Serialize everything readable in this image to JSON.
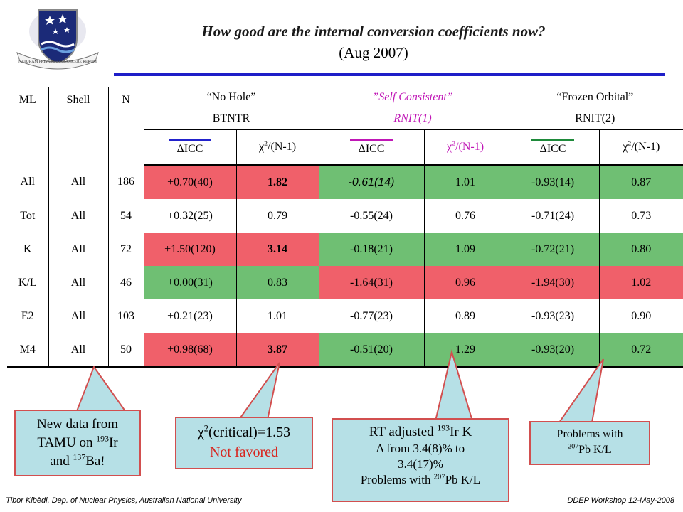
{
  "header": {
    "title": "How good are the internal conversion coefficients now?",
    "subtitle": "(Aug 2007)",
    "crest_motto": "NATURAM PRIMUM COGNOSCERE RERUM"
  },
  "table": {
    "col_ml": "ML",
    "col_shell": "Shell",
    "col_n": "N",
    "groups": [
      {
        "line1": "“No Hole”",
        "line2": "BTNTR",
        "color": "#2222cc"
      },
      {
        "line1": "”Self Consistent”",
        "line2": "RNIT(1)",
        "color": "#c017b6"
      },
      {
        "line1": "“Frozen Orbital”",
        "line2": "RNIT(2)",
        "color": "#1e8a3a"
      }
    ],
    "delta_icc": "ΔICC",
    "chi_label": "χ",
    "chi_exp": "2",
    "chi_tail": "/(N-1)",
    "rows": [
      {
        "ml": "All",
        "shell": "All",
        "n": "186",
        "c1": "+0.70(40)",
        "x1": "1.82",
        "c2": "-0.61(14)",
        "x2": "1.01",
        "c3": "-0.93(14)",
        "x3": "0.87"
      },
      {
        "ml": "Tot",
        "shell": "All",
        "n": "54",
        "c1": "+0.32(25)",
        "x1": "0.79",
        "c2": "-0.55(24)",
        "x2": "0.76",
        "c3": "-0.71(24)",
        "x3": "0.73"
      },
      {
        "ml": "K",
        "shell": "All",
        "n": "72",
        "c1": "+1.50(120)",
        "x1": "3.14",
        "c2": "-0.18(21)",
        "x2": "1.09",
        "c3": "-0.72(21)",
        "x3": "0.80"
      },
      {
        "ml": "K/L",
        "shell": "All",
        "n": "46",
        "c1": "+0.00(31)",
        "x1": "0.83",
        "c2": "-1.64(31)",
        "x2": "0.96",
        "c3": "-1.94(30)",
        "x3": "1.02"
      },
      {
        "ml": "E2",
        "shell": "All",
        "n": "103",
        "c1": "+0.21(23)",
        "x1": "1.01",
        "c2": "-0.77(23)",
        "x2": "0.89",
        "c3": "-0.93(23)",
        "x3": "0.90"
      },
      {
        "ml": "M4",
        "shell": "All",
        "n": "50",
        "c1": "+0.98(68)",
        "x1": "3.87",
        "c2": "-0.51(20)",
        "x2": "1.29",
        "c3": "-0.93(20)",
        "x3": "0.72"
      }
    ]
  },
  "callouts": {
    "tamu_line1": "New data from",
    "tamu_line2a": "TAMU on ",
    "tamu_sup1": "193",
    "tamu_line2b": "Ir",
    "tamu_line3a": "and ",
    "tamu_sup2": "137",
    "tamu_line3b": "Ba!",
    "chi_crit_a": "χ",
    "chi_crit_sup": "2",
    "chi_crit_b": "(critical)=1.53",
    "not_favored": "Not favored",
    "rt_line1a": "RT adjusted ",
    "rt_sup": "193",
    "rt_line1b": "Ir K",
    "rt_line2": "Δ  from 3.4(8)% to",
    "rt_line3": "3.4(17)%",
    "rt_line4a": "Problems with ",
    "rt_line4sup": "207",
    "rt_line4b": "Pb K/L",
    "pb_line1": "Problems with",
    "pb_sup": "207",
    "pb_line2": "Pb K/L"
  },
  "footer": {
    "left": "Tibor Kibèdi, Dep. of Nuclear Physics, Australian National University",
    "right": "DDEP Workshop 12-May-2008"
  },
  "colors": {
    "green": "#6fbf73",
    "red": "#f0606a",
    "rule": "#1e1ec8",
    "callout_fill": "#b6e0e6",
    "callout_border": "#d24f4f"
  }
}
